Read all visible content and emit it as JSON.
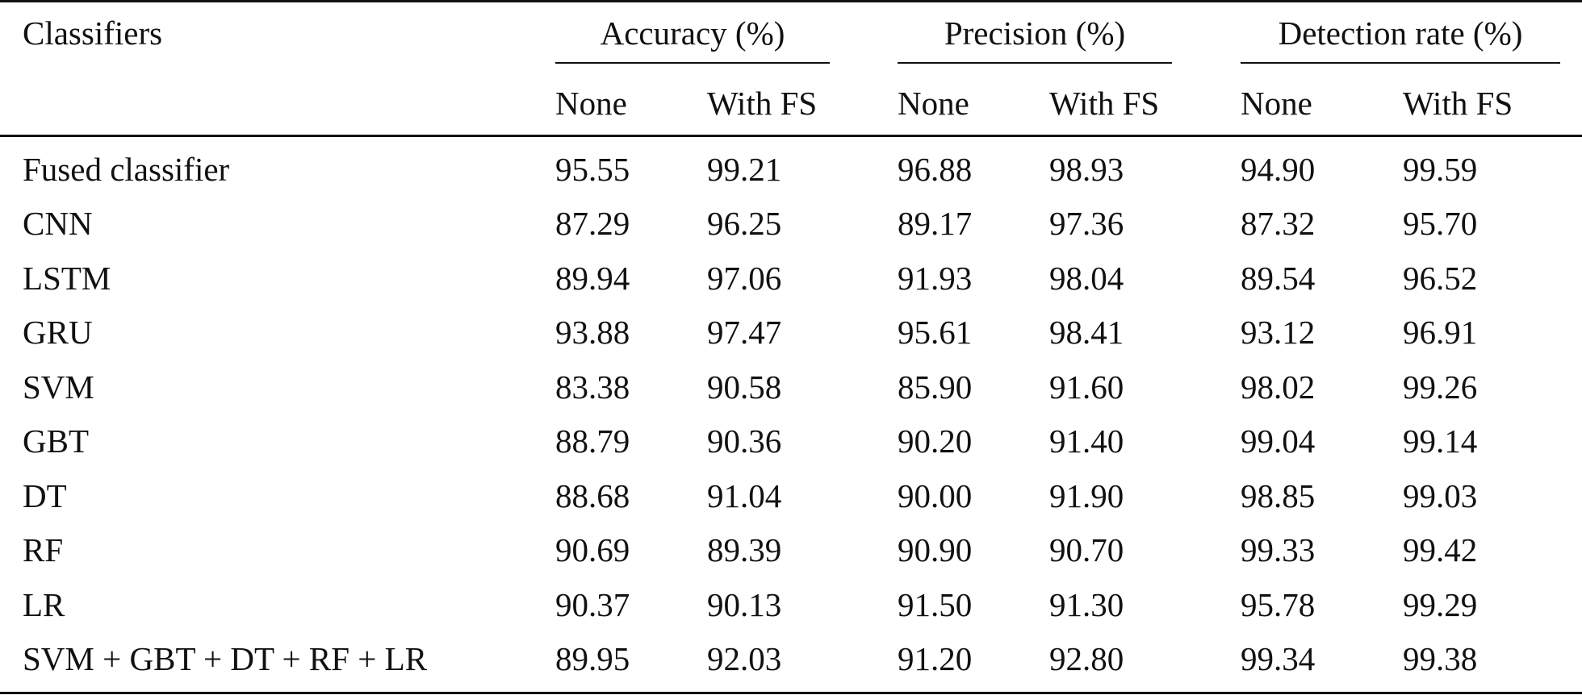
{
  "table": {
    "header": {
      "classifiers_label": "Classifiers",
      "groups": [
        {
          "label": "Accuracy (%)",
          "sub": [
            "None",
            "With FS"
          ]
        },
        {
          "label": "Precision (%)",
          "sub": [
            "None",
            "With FS"
          ]
        },
        {
          "label": "Detection rate (%)",
          "sub": [
            "None",
            "With FS"
          ]
        }
      ]
    },
    "rows": [
      {
        "name": "Fused classifier",
        "values": [
          "95.55",
          "99.21",
          "96.88",
          "98.93",
          "94.90",
          "99.59"
        ]
      },
      {
        "name": "CNN",
        "values": [
          "87.29",
          "96.25",
          "89.17",
          "97.36",
          "87.32",
          "95.70"
        ]
      },
      {
        "name": "LSTM",
        "values": [
          "89.94",
          "97.06",
          "91.93",
          "98.04",
          "89.54",
          "96.52"
        ]
      },
      {
        "name": "GRU",
        "values": [
          "93.88",
          "97.47",
          "95.61",
          "98.41",
          "93.12",
          "96.91"
        ]
      },
      {
        "name": "SVM",
        "values": [
          "83.38",
          "90.58",
          "85.90",
          "91.60",
          "98.02",
          "99.26"
        ]
      },
      {
        "name": "GBT",
        "values": [
          "88.79",
          "90.36",
          "90.20",
          "91.40",
          "99.04",
          "99.14"
        ]
      },
      {
        "name": "DT",
        "values": [
          "88.68",
          "91.04",
          "90.00",
          "91.90",
          "98.85",
          "99.03"
        ]
      },
      {
        "name": "RF",
        "values": [
          "90.69",
          "89.39",
          "90.90",
          "90.70",
          "99.33",
          "99.42"
        ]
      },
      {
        "name": "LR",
        "values": [
          "90.37",
          "90.13",
          "91.50",
          "91.30",
          "95.78",
          "99.29"
        ]
      },
      {
        "name": "SVM + GBT + DT + RF + LR",
        "values": [
          "89.95",
          "92.03",
          "91.20",
          "92.80",
          "99.34",
          "99.38"
        ]
      }
    ]
  }
}
